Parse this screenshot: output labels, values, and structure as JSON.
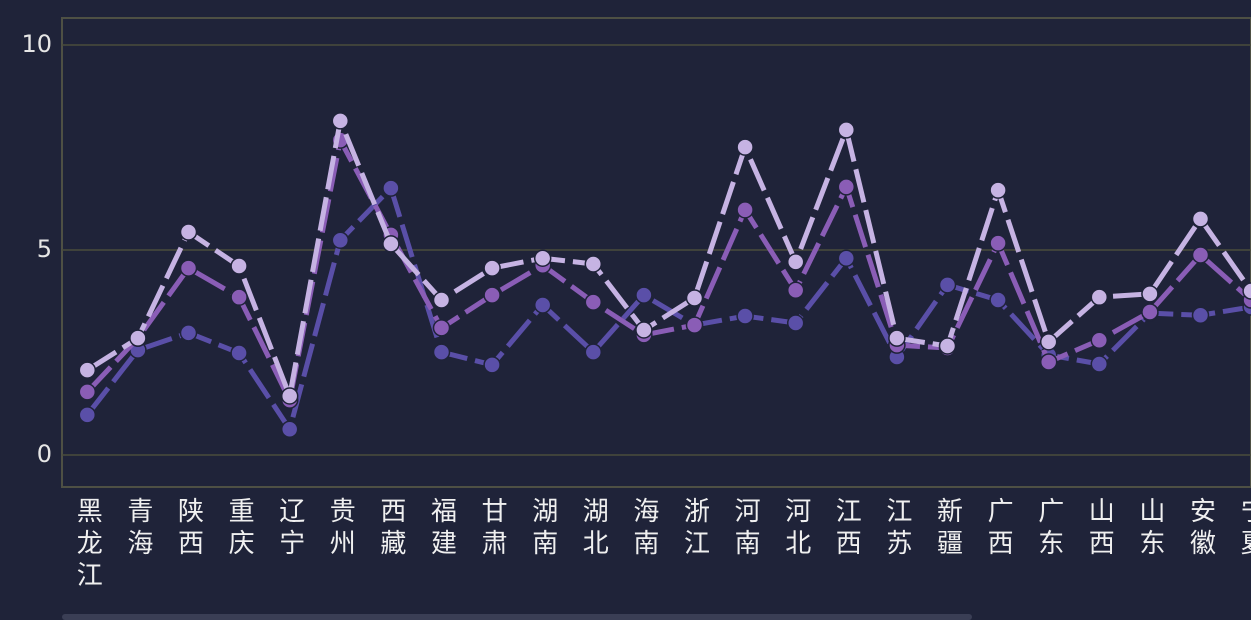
{
  "chart_data": {
    "type": "line",
    "categories": [
      "黑龙江",
      "青海",
      "陕西",
      "重庆",
      "辽宁",
      "贵州",
      "西藏",
      "福建",
      "甘肃",
      "湖南",
      "湖北",
      "海南",
      "浙江",
      "河南",
      "河北",
      "江西",
      "江苏",
      "新疆",
      "广西",
      "广东",
      "山西",
      "山东",
      "安徽",
      "宁夏"
    ],
    "series": [
      {
        "color": "#5a4fa8",
        "values": [
          0.98,
          2.56,
          2.98,
          2.49,
          0.63,
          5.24,
          6.51,
          2.51,
          2.2,
          3.66,
          2.51,
          3.9,
          3.17,
          3.39,
          3.22,
          4.8,
          2.39,
          4.15,
          3.78,
          2.44,
          2.22,
          3.46,
          3.41,
          3.61
        ]
      },
      {
        "color": "#8a5db6",
        "values": [
          1.54,
          2.85,
          4.56,
          3.85,
          1.34,
          7.68,
          5.37,
          3.1,
          3.9,
          4.63,
          3.73,
          2.93,
          3.17,
          5.98,
          4.02,
          6.54,
          2.68,
          2.61,
          5.17,
          2.27,
          2.8,
          3.49,
          4.88,
          3.78
        ]
      },
      {
        "color": "#c6b3e3",
        "values": [
          2.07,
          2.85,
          5.44,
          4.61,
          1.44,
          8.15,
          5.15,
          3.78,
          4.56,
          4.8,
          4.66,
          3.05,
          3.83,
          7.51,
          4.71,
          7.93,
          2.85,
          2.66,
          6.46,
          2.76,
          3.85,
          3.93,
          5.76,
          4.0
        ]
      }
    ],
    "ylim": [
      -0.78,
      10.66
    ],
    "yticks": [
      0,
      5,
      10
    ],
    "grid": true
  }
}
